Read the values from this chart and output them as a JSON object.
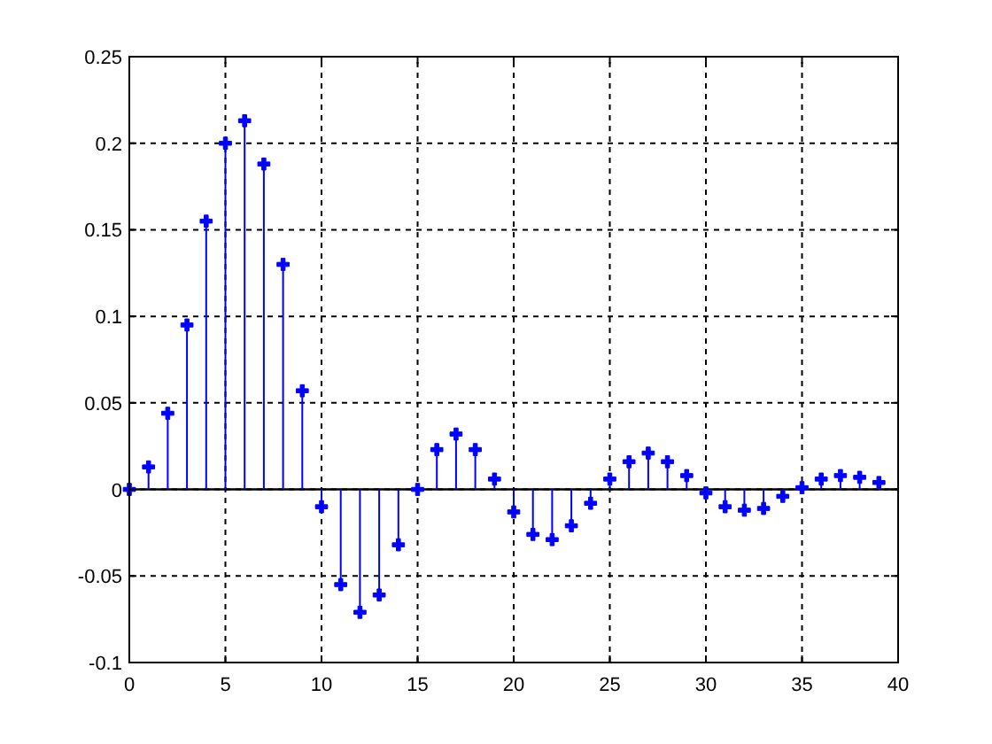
{
  "chart_data": {
    "type": "lollipop",
    "x": [
      0,
      1,
      2,
      3,
      4,
      5,
      6,
      7,
      8,
      9,
      10,
      11,
      12,
      13,
      14,
      15,
      16,
      17,
      18,
      19,
      20,
      21,
      22,
      23,
      24,
      25,
      26,
      27,
      28,
      29,
      30,
      31,
      32,
      33,
      34,
      35,
      36,
      37,
      38,
      39
    ],
    "values": [
      0,
      0.013,
      0.044,
      0.095,
      0.155,
      0.2,
      0.213,
      0.188,
      0.13,
      0.057,
      -0.01,
      -0.055,
      -0.071,
      -0.061,
      -0.032,
      0,
      0.023,
      0.032,
      0.023,
      0.006,
      -0.013,
      -0.026,
      -0.029,
      -0.021,
      -0.008,
      0.006,
      0.016,
      0.021,
      0.016,
      0.008,
      -0.002,
      -0.01,
      -0.012,
      -0.011,
      -0.004,
      0.001,
      0.006,
      0.008,
      0.007,
      0.004
    ],
    "color": "#0000ff",
    "marker": "cross",
    "grid": true,
    "xlim": [
      0,
      40
    ],
    "xticks": [
      0,
      5,
      10,
      15,
      20,
      25,
      30,
      35,
      40
    ],
    "ylim": [
      -0.1,
      0.25
    ],
    "yticks": [
      -0.1,
      -0.05,
      0,
      0.05,
      0.1,
      0.15,
      0.2,
      0.25
    ],
    "ref_lines": [
      {
        "axis": "y",
        "value": 0,
        "color": "#000000"
      }
    ]
  }
}
